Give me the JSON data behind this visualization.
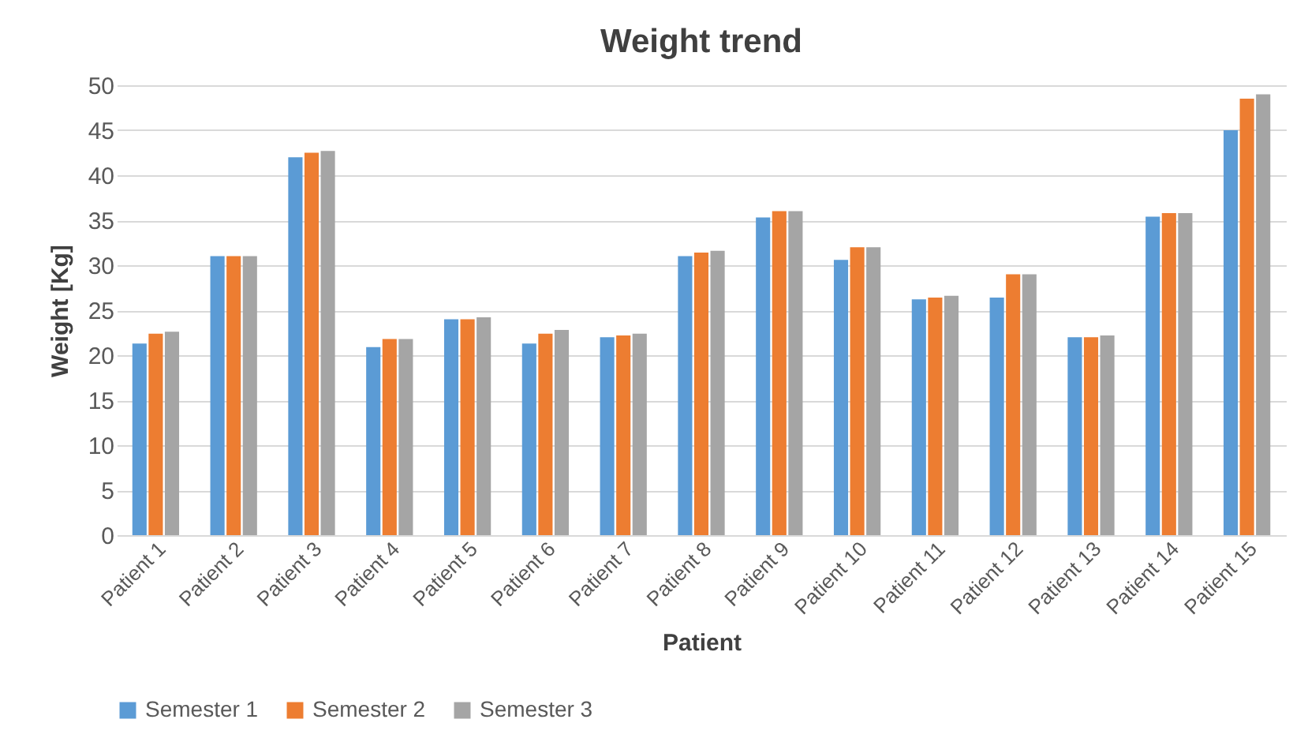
{
  "chart_data": {
    "type": "bar",
    "title": "Weight trend",
    "xlabel": "Patient",
    "ylabel": "Weight [Kg]",
    "categories": [
      "Patient 1",
      "Patient 2",
      "Patient 3",
      "Patient 4",
      "Patient 5",
      "Patient 6",
      "Patient 7",
      "Patient 8",
      "Patient 9",
      "Patient 10",
      "Patient 11",
      "Patient 12",
      "Patient 13",
      "Patient 14",
      "Patient 15"
    ],
    "series": [
      {
        "name": "Semester 1",
        "color": "#5b9bd5",
        "values": [
          21.3,
          31,
          42,
          20.9,
          24,
          21.3,
          22,
          31,
          35.3,
          30.6,
          26.2,
          26.4,
          22,
          35.4,
          45
        ]
      },
      {
        "name": "Semester 2",
        "color": "#ed7d31",
        "values": [
          22.4,
          31,
          42.5,
          21.8,
          24,
          22.4,
          22.2,
          31.4,
          36,
          32,
          26.4,
          29,
          22,
          35.8,
          48.5
        ]
      },
      {
        "name": "Semester 3",
        "color": "#a5a5a5",
        "values": [
          22.6,
          31,
          42.7,
          21.8,
          24.2,
          22.8,
          22.4,
          31.6,
          36,
          32,
          26.6,
          29,
          22.2,
          35.8,
          49
        ]
      }
    ],
    "ylim": [
      0,
      50
    ],
    "yticks": [
      0,
      5,
      10,
      15,
      20,
      25,
      30,
      35,
      40,
      45,
      50
    ],
    "grid": "y",
    "legend": "bottom"
  }
}
